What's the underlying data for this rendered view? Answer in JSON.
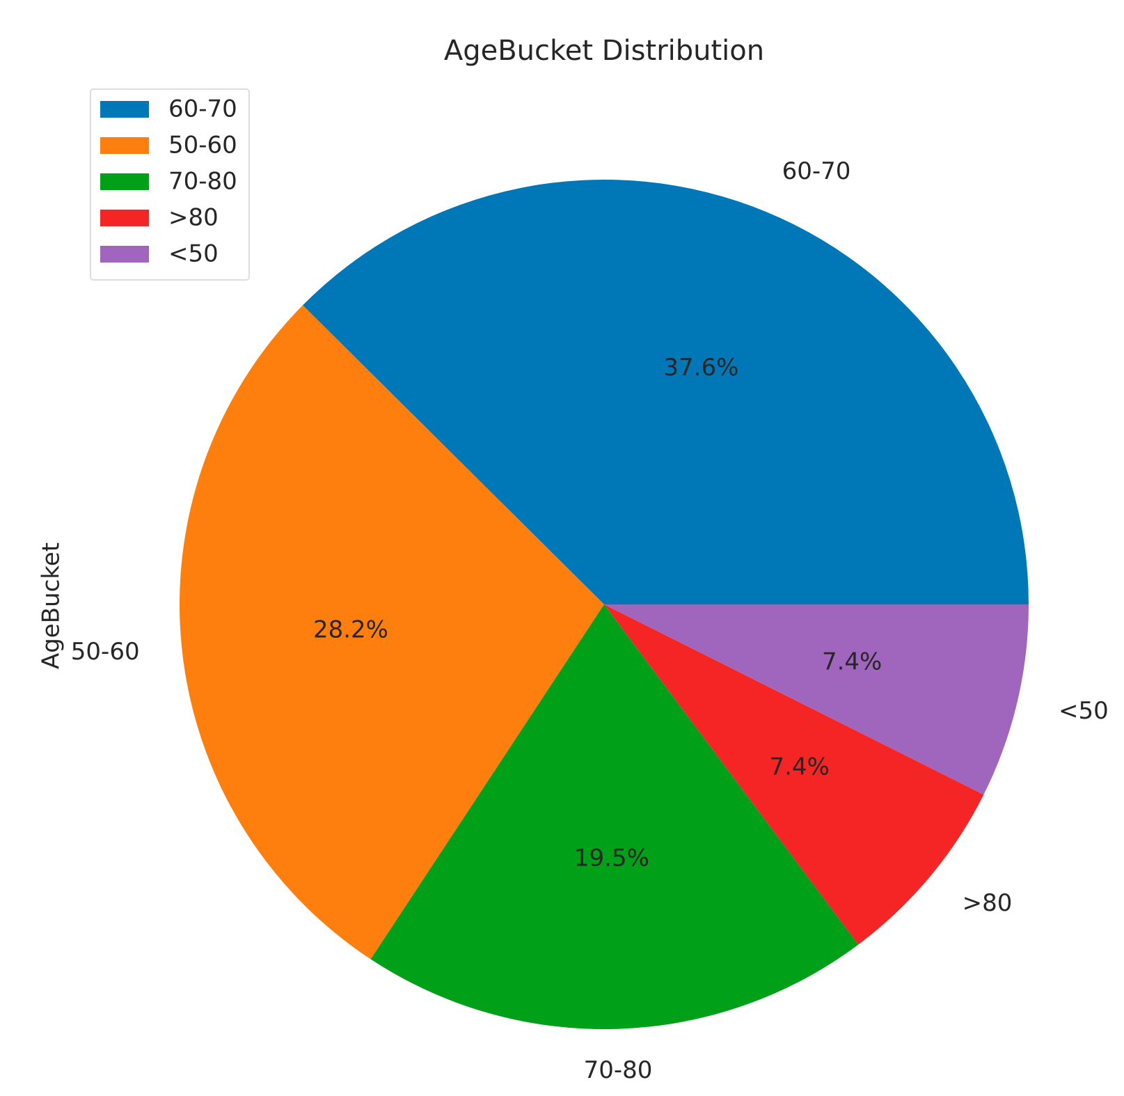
{
  "chart_data": {
    "type": "pie",
    "title": "AgeBucket Distribution",
    "y_label": "AgeBucket",
    "categories": [
      "60-70",
      "50-60",
      "70-80",
      ">80",
      "<50"
    ],
    "values": [
      37.6,
      28.2,
      19.5,
      7.4,
      7.4
    ],
    "value_labels": [
      "37.6%",
      "28.2%",
      "19.5%",
      "7.4%",
      "7.4%"
    ],
    "colors": [
      "#0077b6",
      "#ff7f0e",
      "#00a019",
      "#f52525",
      "#a066be"
    ],
    "legend": "upper left"
  }
}
